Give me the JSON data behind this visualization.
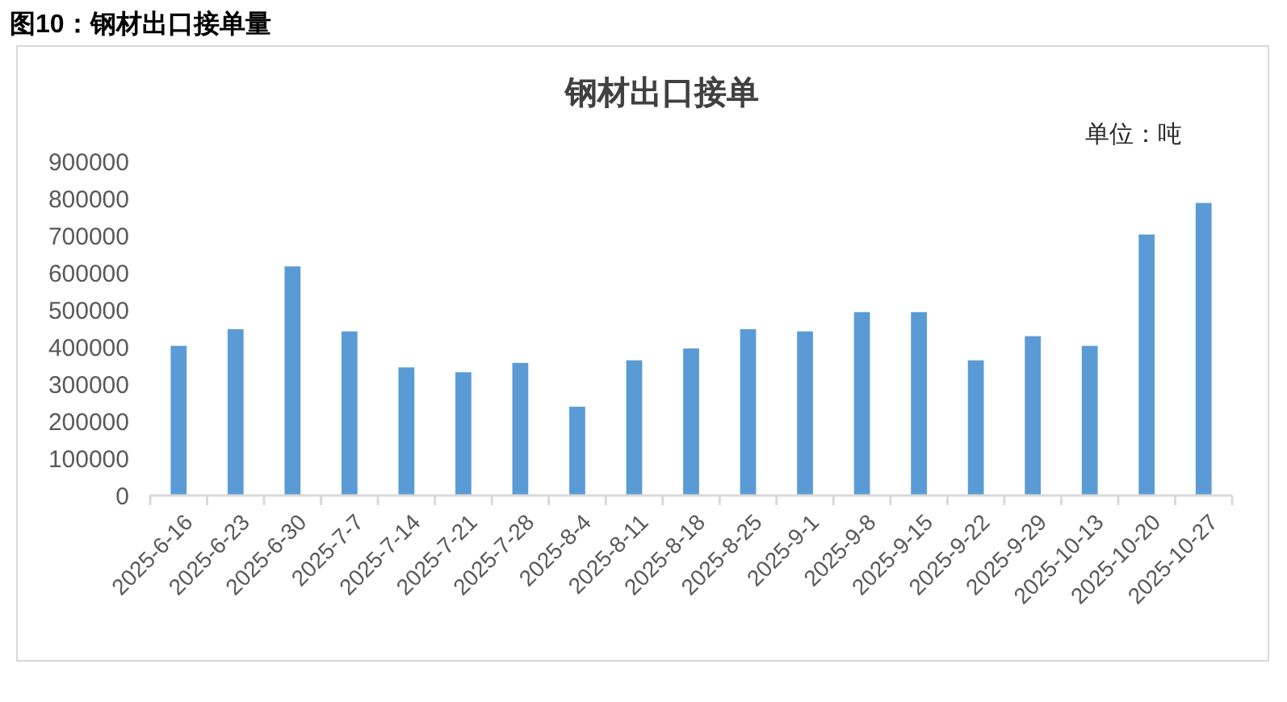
{
  "chart_data": {
    "type": "bar",
    "title": "图10：钢材出口接单量",
    "subtitle": "钢材出口接单",
    "annotations": [
      "单位：吨"
    ],
    "categories": [
      "2025-6-16",
      "2025-6-23",
      "2025-6-30",
      "2025-7-7",
      "2025-7-14",
      "2025-7-21",
      "2025-7-28",
      "2025-8-4",
      "2025-8-11",
      "2025-8-18",
      "2025-8-25",
      "2025-9-1",
      "2025-9-8",
      "2025-9-15",
      "2025-9-22",
      "2025-9-29",
      "2025-10-13",
      "2025-10-20",
      "2025-10-27"
    ],
    "values": [
      403000,
      448000,
      617000,
      442000,
      345000,
      332000,
      357000,
      239000,
      364000,
      396000,
      448000,
      442000,
      494000,
      494000,
      364000,
      429000,
      403000,
      703000,
      788000
    ],
    "color": "#5b9bd5",
    "ylim": [
      0,
      900000
    ],
    "yticks": [
      0,
      100000,
      200000,
      300000,
      400000,
      500000,
      600000,
      700000,
      800000,
      900000
    ]
  }
}
